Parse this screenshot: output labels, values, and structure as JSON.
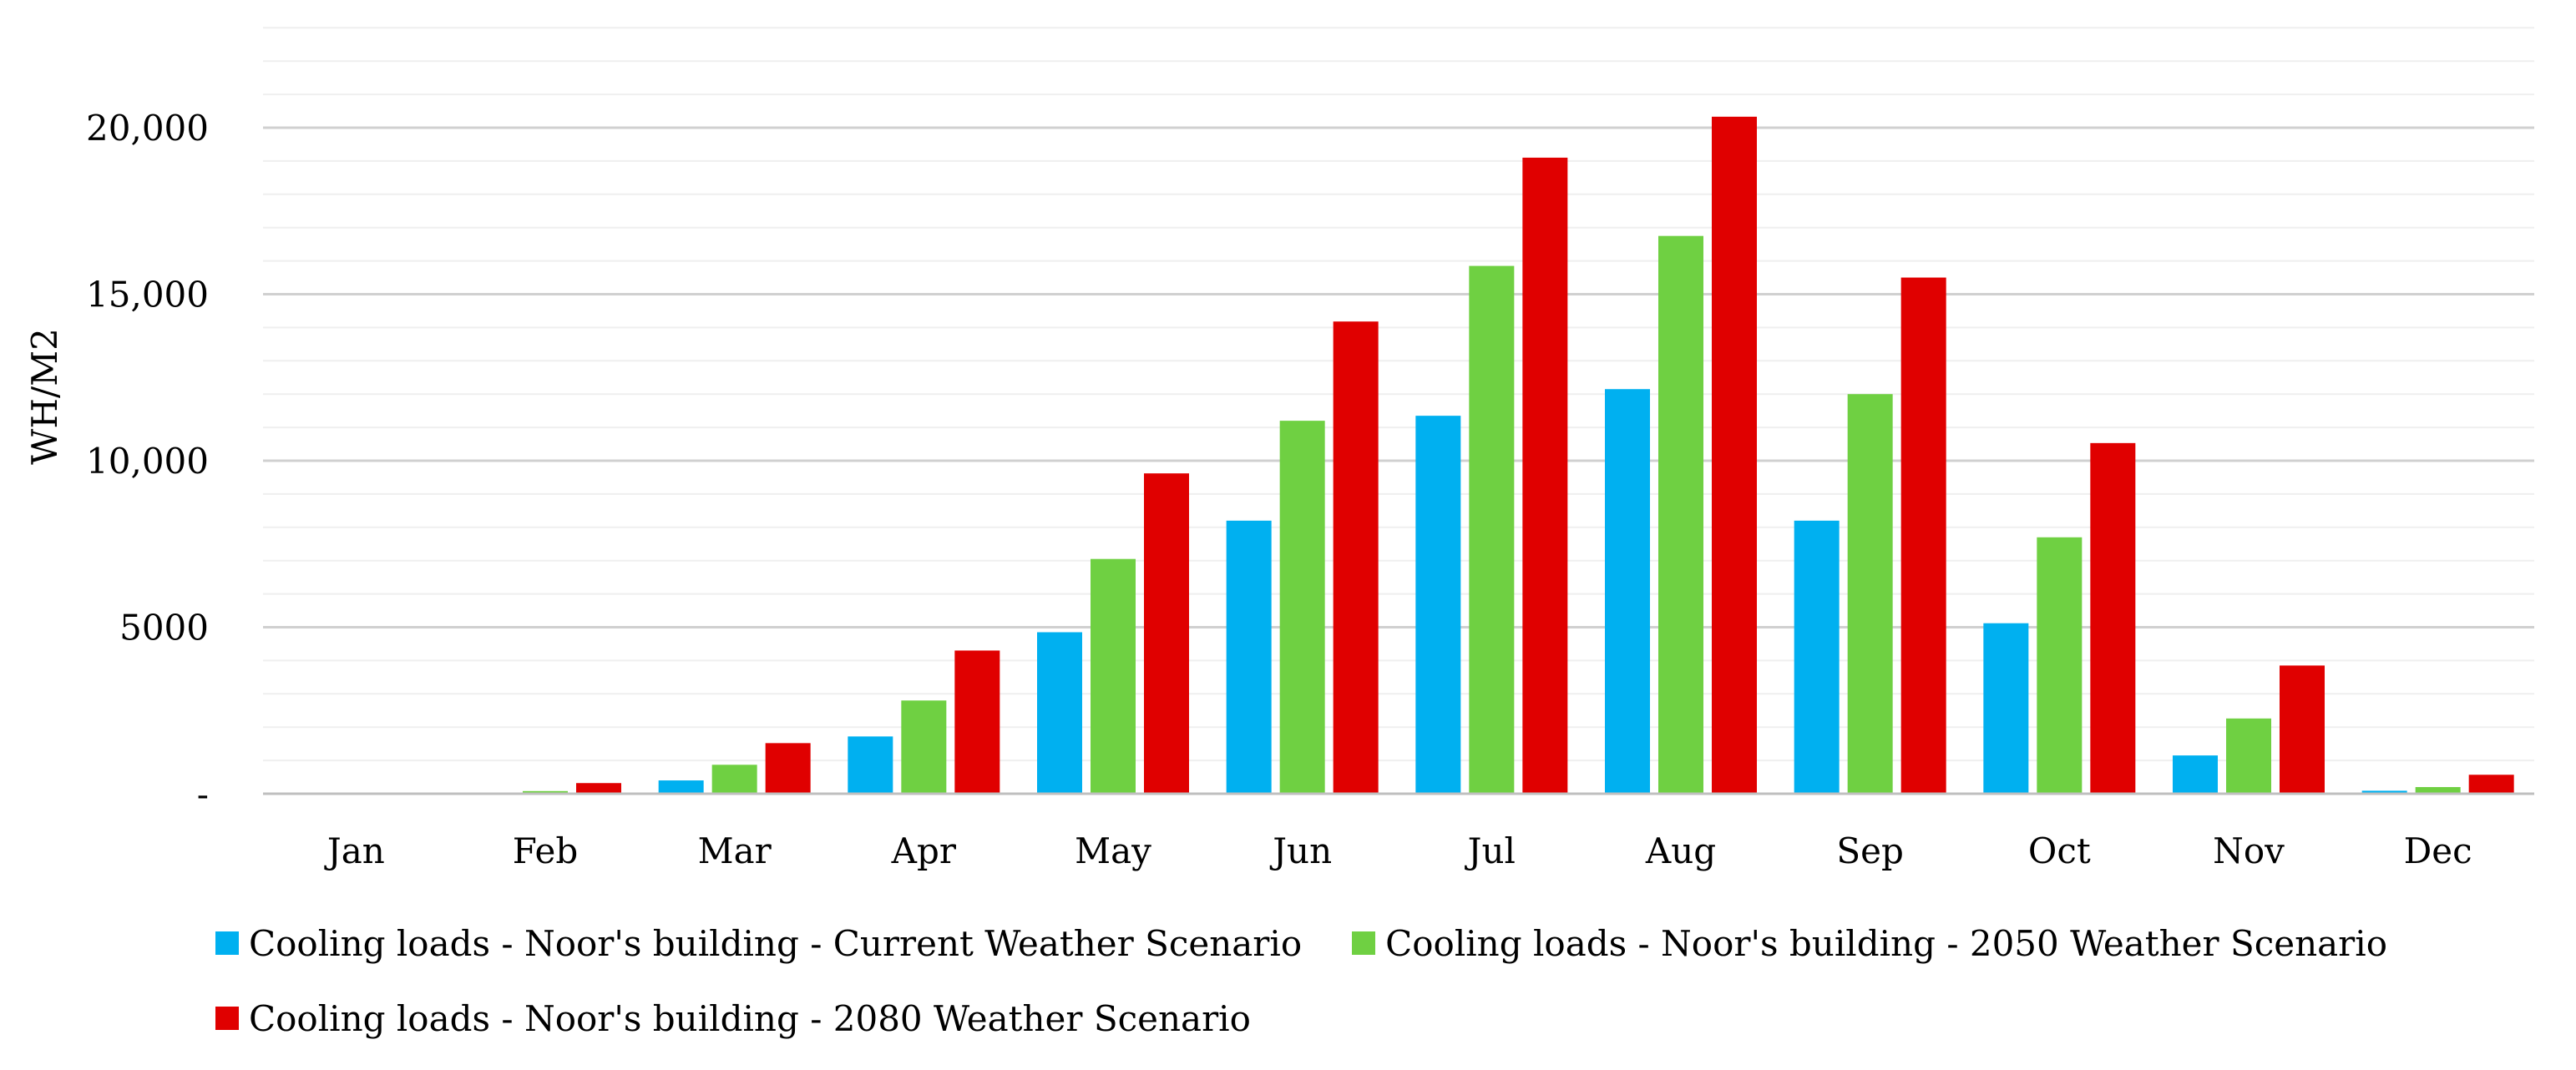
{
  "chart_data": {
    "type": "bar",
    "title": "",
    "xlabel": "",
    "ylabel": "WH/M2",
    "ylim": [
      0,
      23000
    ],
    "grid": true,
    "categories": [
      "Jan",
      "Feb",
      "Mar",
      "Apr",
      "May",
      "Jun",
      "Jul",
      "Aug",
      "Sep",
      "Oct",
      "Nov",
      "Dec"
    ],
    "yticks": [
      {
        "value": 0,
        "label": "-"
      },
      {
        "value": 5000,
        "label": "5000"
      },
      {
        "value": 10000,
        "label": "10,000"
      },
      {
        "value": 15000,
        "label": "15,000"
      },
      {
        "value": 20000,
        "label": "20,000"
      }
    ],
    "series": [
      {
        "name": "Cooling loads - Noor's building - Current Weather Scenario",
        "color": "#00B0F0",
        "values": [
          0,
          0,
          400,
          1720,
          4850,
          8200,
          11350,
          12150,
          8200,
          5120,
          1150,
          90
        ]
      },
      {
        "name": "Cooling loads - Noor's building - 2050 Weather Scenario",
        "color": "#6FD042",
        "values": [
          0,
          80,
          870,
          2800,
          7050,
          11200,
          15850,
          16750,
          12000,
          7700,
          2260,
          200
        ]
      },
      {
        "name": "Cooling loads - Noor's building - 2080 Weather Scenario",
        "color": "#E00000",
        "values": [
          0,
          320,
          1520,
          4300,
          9620,
          14180,
          19100,
          20330,
          15500,
          10530,
          3850,
          570
        ]
      }
    ],
    "legend": "bottom"
  }
}
